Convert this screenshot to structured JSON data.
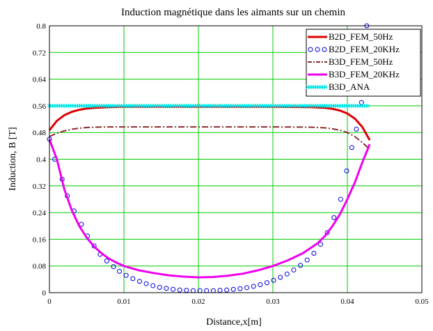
{
  "chart_data": {
    "type": "line",
    "title": "Induction magnétique dans les aimants sur un chemin",
    "xlabel": "Distance,x[m]",
    "ylabel": "Induction, B [T]",
    "xlim": [
      0,
      0.05
    ],
    "ylim": [
      0,
      0.8
    ],
    "grid": true,
    "grid_color": "#00cc00",
    "legend_position": "top-right",
    "x_ticks": [
      "0",
      "0.01",
      "0.02",
      "0.03",
      "0.04",
      "0.05"
    ],
    "y_ticks": [
      "0",
      "0.08",
      "0.16",
      "0.24",
      "0.32",
      "0.4",
      "0.48",
      "0.56",
      "0.64",
      "0.72",
      "0.8"
    ],
    "series": [
      {
        "name": "B2D_FEM_50Hz",
        "style": "solid",
        "color": "#dd0000",
        "x": [
          0,
          0.001,
          0.002,
          0.003,
          0.004,
          0.005,
          0.006,
          0.008,
          0.01,
          0.02,
          0.03,
          0.035,
          0.037,
          0.038,
          0.039,
          0.04,
          0.041,
          0.042,
          0.043
        ],
        "y": [
          0.487,
          0.515,
          0.532,
          0.542,
          0.548,
          0.552,
          0.554,
          0.556,
          0.557,
          0.557,
          0.557,
          0.556,
          0.554,
          0.551,
          0.546,
          0.537,
          0.522,
          0.497,
          0.457
        ]
      },
      {
        "name": "B2D_FEM_20KHz",
        "style": "circles",
        "color": "#0000dd",
        "x": [
          0,
          0.0007,
          0.0017,
          0.0024,
          0.0033,
          0.0043,
          0.0051,
          0.006,
          0.0068,
          0.0077,
          0.0086,
          0.0094,
          0.0103,
          0.0112,
          0.0121,
          0.013,
          0.0139,
          0.0148,
          0.0157,
          0.0166,
          0.0175,
          0.0184,
          0.0193,
          0.0202,
          0.0211,
          0.022,
          0.0229,
          0.0238,
          0.0247,
          0.0256,
          0.0265,
          0.0274,
          0.0283,
          0.0292,
          0.0301,
          0.031,
          0.0319,
          0.0328,
          0.0337,
          0.0346,
          0.0355,
          0.0364,
          0.0373,
          0.0382,
          0.0391,
          0.0399,
          0.0406,
          0.0412,
          0.0419,
          0.0426
        ],
        "y": [
          0.46,
          0.4,
          0.34,
          0.29,
          0.245,
          0.205,
          0.17,
          0.14,
          0.115,
          0.095,
          0.078,
          0.064,
          0.052,
          0.042,
          0.034,
          0.027,
          0.021,
          0.016,
          0.013,
          0.01,
          0.008,
          0.007,
          0.006,
          0.006,
          0.006,
          0.006,
          0.007,
          0.008,
          0.01,
          0.012,
          0.015,
          0.019,
          0.024,
          0.03,
          0.037,
          0.046,
          0.056,
          0.068,
          0.082,
          0.098,
          0.118,
          0.145,
          0.18,
          0.225,
          0.28,
          0.365,
          0.435,
          0.49,
          0.57,
          0.8
        ]
      },
      {
        "name": "B3D_FEM_50Hz",
        "style": "dash-dot",
        "color": "#8b2c2c",
        "x": [
          0,
          0.001,
          0.002,
          0.003,
          0.004,
          0.005,
          0.006,
          0.008,
          0.01,
          0.02,
          0.03,
          0.035,
          0.037,
          0.038,
          0.039,
          0.04,
          0.041,
          0.042,
          0.043
        ],
        "y": [
          0.468,
          0.478,
          0.485,
          0.49,
          0.493,
          0.495,
          0.496,
          0.497,
          0.497,
          0.497,
          0.497,
          0.496,
          0.494,
          0.491,
          0.487,
          0.48,
          0.468,
          0.45,
          0.43
        ]
      },
      {
        "name": "B3D_FEM_20KHz",
        "style": "solid",
        "color": "#ee00ee",
        "x": [
          0,
          0.001,
          0.002,
          0.003,
          0.004,
          0.005,
          0.006,
          0.007,
          0.008,
          0.009,
          0.01,
          0.012,
          0.014,
          0.016,
          0.018,
          0.02,
          0.022,
          0.024,
          0.026,
          0.028,
          0.03,
          0.032,
          0.034,
          0.036,
          0.037,
          0.038,
          0.039,
          0.04,
          0.041,
          0.042,
          0.043
        ],
        "y": [
          0.46,
          0.4,
          0.31,
          0.247,
          0.2,
          0.165,
          0.138,
          0.118,
          0.102,
          0.09,
          0.08,
          0.067,
          0.059,
          0.052,
          0.048,
          0.046,
          0.047,
          0.051,
          0.057,
          0.067,
          0.08,
          0.097,
          0.118,
          0.148,
          0.17,
          0.2,
          0.235,
          0.28,
          0.33,
          0.39,
          0.445
        ]
      },
      {
        "name": "B3D_ANA",
        "style": "stars",
        "color": "#00e5e5",
        "x": [
          0,
          0.043
        ],
        "y": [
          0.56,
          0.56
        ]
      }
    ]
  }
}
